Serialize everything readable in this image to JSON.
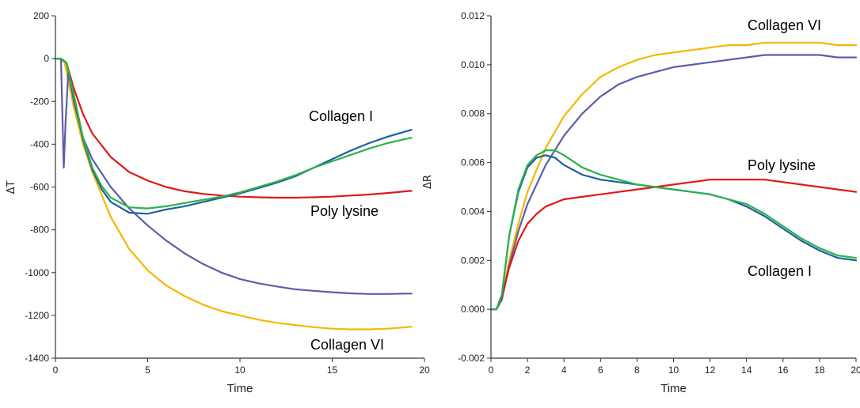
{
  "chart_data": [
    {
      "type": "line",
      "title": "",
      "xlabel": "Time",
      "ylabel": "ΔT",
      "xlim": [
        0,
        20
      ],
      "ylim": [
        -1400,
        200
      ],
      "x_ticks": [
        "0",
        "5",
        "10",
        "15",
        "20"
      ],
      "y_ticks": [
        "-1400",
        "-1200",
        "-1000",
        "-800",
        "-600",
        "-400",
        "-200",
        "0",
        "200"
      ],
      "grid": false,
      "legend": "none",
      "series": [
        {
          "color": "#f5b800",
          "x": [
            0,
            0.3,
            0.5,
            1,
            1.5,
            2,
            3,
            4,
            5,
            6,
            7,
            8,
            9,
            10,
            11,
            12,
            13,
            14,
            15,
            16,
            17,
            18,
            19,
            19.3
          ],
          "y": [
            0,
            0,
            -20,
            -230,
            -400,
            -530,
            -740,
            -890,
            -990,
            -1060,
            -1110,
            -1150,
            -1180,
            -1200,
            -1220,
            -1235,
            -1245,
            -1255,
            -1262,
            -1265,
            -1265,
            -1262,
            -1255,
            -1253
          ]
        },
        {
          "color": "#5b5ea8",
          "x": [
            0,
            0.3,
            0.45,
            0.55,
            0.7,
            1,
            1.5,
            2,
            3,
            4,
            5,
            6,
            7,
            8,
            9,
            10,
            11,
            12,
            13,
            14,
            15,
            16,
            17,
            18,
            19,
            19.3
          ],
          "y": [
            0,
            0,
            -510,
            -300,
            -60,
            -200,
            -370,
            -470,
            -600,
            -700,
            -780,
            -850,
            -910,
            -960,
            -1000,
            -1030,
            -1050,
            -1065,
            -1078,
            -1085,
            -1092,
            -1097,
            -1100,
            -1100,
            -1098,
            -1098
          ]
        },
        {
          "color": "#e01818",
          "x": [
            0,
            0.3,
            0.6,
            1,
            1.5,
            2,
            3,
            4,
            5,
            6,
            7,
            8,
            9,
            10,
            11,
            12,
            13,
            14,
            15,
            16,
            17,
            18,
            19,
            19.3
          ],
          "y": [
            0,
            0,
            -20,
            -140,
            -260,
            -350,
            -460,
            -530,
            -570,
            -600,
            -620,
            -632,
            -640,
            -645,
            -648,
            -650,
            -650,
            -648,
            -645,
            -640,
            -635,
            -628,
            -620,
            -618
          ]
        },
        {
          "color": "#1f5fa0",
          "x": [
            0,
            0.3,
            0.6,
            1,
            1.5,
            2,
            2.5,
            3,
            4,
            5,
            6,
            7,
            8,
            9,
            10,
            11,
            12,
            13,
            14,
            15,
            16,
            17,
            18,
            19,
            19.3
          ],
          "y": [
            0,
            0,
            -20,
            -180,
            -380,
            -520,
            -610,
            -670,
            -720,
            -725,
            -705,
            -690,
            -670,
            -650,
            -630,
            -605,
            -580,
            -550,
            -510,
            -470,
            -430,
            -395,
            -365,
            -340,
            -333
          ]
        },
        {
          "color": "#2ab34a",
          "x": [
            0,
            0.3,
            0.6,
            1,
            1.5,
            2,
            2.5,
            3,
            4,
            5,
            6,
            7,
            8,
            9,
            10,
            11,
            12,
            13,
            14,
            15,
            16,
            17,
            18,
            19,
            19.3
          ],
          "y": [
            0,
            0,
            -20,
            -170,
            -370,
            -510,
            -595,
            -650,
            -695,
            -700,
            -690,
            -675,
            -660,
            -645,
            -625,
            -600,
            -575,
            -545,
            -510,
            -480,
            -450,
            -420,
            -395,
            -375,
            -370
          ]
        }
      ],
      "annotations": [
        "Collagen I",
        "Poly lysine",
        "Collagen VI"
      ]
    },
    {
      "type": "line",
      "title": "",
      "xlabel": "Time",
      "ylabel": "ΔR",
      "xlim": [
        0,
        20
      ],
      "ylim": [
        -0.002,
        0.012
      ],
      "x_ticks": [
        "0",
        "2",
        "4",
        "6",
        "8",
        "10",
        "12",
        "14",
        "16",
        "18",
        "20"
      ],
      "y_ticks": [
        "-0.002",
        "0.000",
        "0.002",
        "0.004",
        "0.006",
        "0.008",
        "0.010",
        "0.012"
      ],
      "grid": false,
      "legend": "none",
      "series": [
        {
          "color": "#f5b800",
          "x": [
            0,
            0.3,
            0.6,
            1,
            1.5,
            2,
            3,
            4,
            5,
            6,
            7,
            8,
            9,
            10,
            11,
            12,
            13,
            14,
            15,
            16,
            17,
            18,
            19,
            20
          ],
          "y": [
            0,
            0,
            0.0005,
            0.002,
            0.0035,
            0.0048,
            0.0066,
            0.0079,
            0.0088,
            0.0095,
            0.0099,
            0.0102,
            0.0104,
            0.0105,
            0.0106,
            0.0107,
            0.0108,
            0.0108,
            0.0109,
            0.0109,
            0.0109,
            0.0109,
            0.0108,
            0.0108
          ]
        },
        {
          "color": "#5b5ea8",
          "x": [
            0,
            0.3,
            0.6,
            1,
            1.5,
            2,
            3,
            4,
            5,
            6,
            7,
            8,
            9,
            10,
            11,
            12,
            13,
            14,
            15,
            16,
            17,
            18,
            19,
            20
          ],
          "y": [
            0,
            0,
            0.0004,
            0.0018,
            0.0032,
            0.0043,
            0.0059,
            0.0071,
            0.008,
            0.0087,
            0.0092,
            0.0095,
            0.0097,
            0.0099,
            0.01,
            0.0101,
            0.0102,
            0.0103,
            0.0104,
            0.0104,
            0.0104,
            0.0104,
            0.0103,
            0.0103
          ]
        },
        {
          "color": "#e01818",
          "x": [
            0,
            0.3,
            0.6,
            1,
            1.5,
            2,
            2.5,
            3,
            4,
            5,
            6,
            7,
            8,
            9,
            10,
            11,
            12,
            13,
            14,
            15,
            16,
            17,
            18,
            19,
            20
          ],
          "y": [
            0,
            0,
            0.0005,
            0.0017,
            0.0028,
            0.0035,
            0.0039,
            0.0042,
            0.0045,
            0.0046,
            0.0047,
            0.0048,
            0.0049,
            0.005,
            0.0051,
            0.0052,
            0.0053,
            0.0053,
            0.0053,
            0.0053,
            0.0052,
            0.0051,
            0.005,
            0.0049,
            0.0048
          ]
        },
        {
          "color": "#1f5fa0",
          "x": [
            0,
            0.3,
            0.6,
            1,
            1.5,
            2,
            2.5,
            3,
            3.5,
            4,
            5,
            6,
            7,
            8,
            9,
            10,
            11,
            12,
            13,
            14,
            15,
            16,
            17,
            18,
            19,
            20
          ],
          "y": [
            0,
            0,
            0.0006,
            0.003,
            0.0048,
            0.0058,
            0.0062,
            0.0063,
            0.0062,
            0.0059,
            0.0055,
            0.0053,
            0.0052,
            0.0051,
            0.005,
            0.0049,
            0.0048,
            0.0047,
            0.0045,
            0.0042,
            0.0038,
            0.0033,
            0.0028,
            0.0024,
            0.0021,
            0.002
          ]
        },
        {
          "color": "#2ab34a",
          "x": [
            0,
            0.3,
            0.6,
            1,
            1.5,
            2,
            2.5,
            3,
            3.5,
            4,
            5,
            6,
            7,
            8,
            9,
            10,
            11,
            12,
            13,
            14,
            15,
            16,
            17,
            18,
            19,
            20
          ],
          "y": [
            0,
            0,
            0.0006,
            0.003,
            0.0049,
            0.0059,
            0.0063,
            0.0065,
            0.0065,
            0.0063,
            0.0058,
            0.0055,
            0.0053,
            0.0051,
            0.005,
            0.0049,
            0.0048,
            0.0047,
            0.0045,
            0.0043,
            0.0039,
            0.0034,
            0.0029,
            0.0025,
            0.0022,
            0.0021
          ]
        }
      ],
      "annotations": [
        "Collagen VI",
        "Poly lysine",
        "Collagen I"
      ]
    }
  ]
}
